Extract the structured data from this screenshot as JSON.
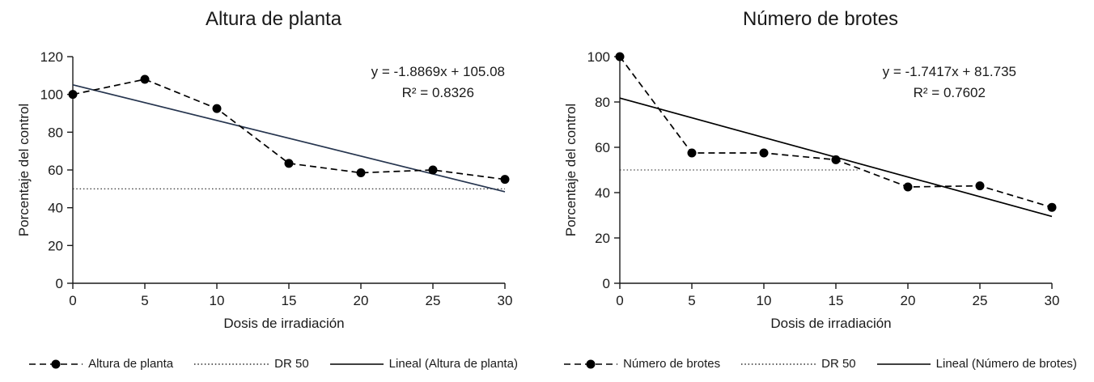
{
  "page": {
    "background": "#ffffff",
    "text_color": "#1a1a1a"
  },
  "chart_data": [
    {
      "type": "line",
      "title": "Altura de planta",
      "xlabel": "Dosis de irradiación",
      "ylabel": "Porcentaje del control",
      "x": [
        0,
        5,
        10,
        15,
        20,
        25,
        30
      ],
      "values": [
        100,
        108,
        92.5,
        63.5,
        58.5,
        60,
        55
      ],
      "xlim": [
        0,
        30
      ],
      "ylim": [
        0,
        120
      ],
      "xticks": [
        0,
        5,
        10,
        15,
        20,
        25,
        30
      ],
      "yticks": [
        0,
        20,
        40,
        60,
        80,
        100,
        120
      ],
      "equation": "y = -1.8869x + 105.08",
      "r2": "R² = 0.8326",
      "trendline": {
        "slope": -1.8869,
        "intercept": 105.08,
        "color": "#26354f"
      },
      "dr50": {
        "y": 50,
        "x_end": 30
      },
      "series_color": "#000000",
      "grid": false,
      "legend_position": "bottom",
      "legend": [
        {
          "label": "Altura de planta",
          "style": "dashed-marker"
        },
        {
          "label": "DR 50",
          "style": "dotted"
        },
        {
          "label": "Lineal (Altura de planta)",
          "style": "solid"
        }
      ]
    },
    {
      "type": "line",
      "title": "Número de brotes",
      "xlabel": "Dosis de irradiación",
      "ylabel": "Porcentaje del control",
      "x": [
        0,
        5,
        10,
        15,
        20,
        25,
        30
      ],
      "values": [
        100,
        57.5,
        57.5,
        54.5,
        42.5,
        43,
        33.5
      ],
      "xlim": [
        0,
        30
      ],
      "ylim": [
        0,
        100
      ],
      "xticks": [
        0,
        5,
        10,
        15,
        20,
        25,
        30
      ],
      "yticks": [
        0,
        20,
        40,
        60,
        80,
        100
      ],
      "equation": "y = -1.7417x + 81.735",
      "r2": "R² = 0.7602",
      "trendline": {
        "slope": -1.7417,
        "intercept": 81.735,
        "color": "#000000"
      },
      "dr50": {
        "y": 50,
        "x_end": 16.5
      },
      "series_color": "#000000",
      "grid": false,
      "legend_position": "bottom",
      "legend": [
        {
          "label": "Número de brotes",
          "style": "dashed-marker"
        },
        {
          "label": "DR 50",
          "style": "dotted"
        },
        {
          "label": "Lineal (Número de brotes)",
          "style": "solid"
        }
      ]
    }
  ]
}
